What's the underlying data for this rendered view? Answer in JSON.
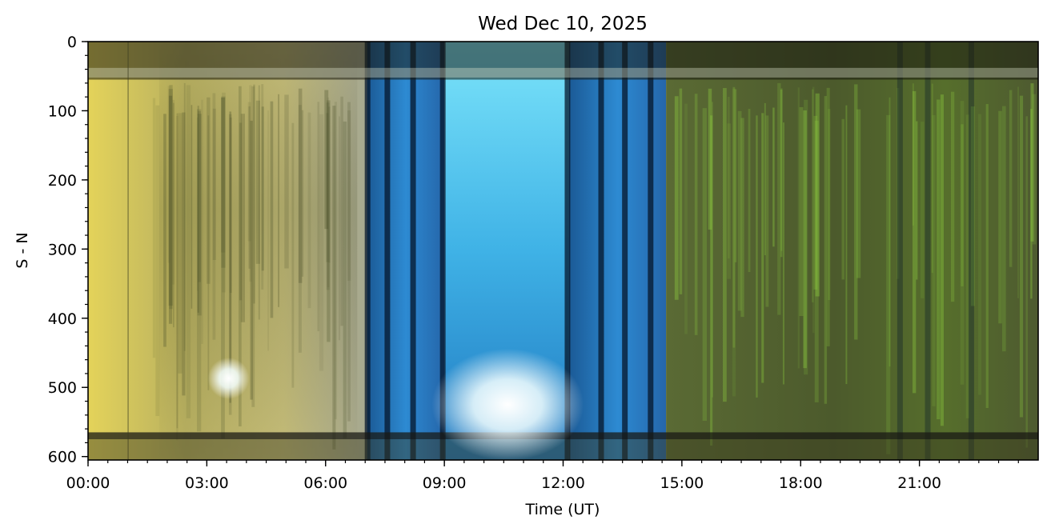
{
  "chart_data": {
    "type": "heatmap",
    "title": "Wed Dec 10, 2025",
    "xlabel": "Time (UT)",
    "ylabel": "S - N",
    "xlim": [
      0,
      24
    ],
    "ylim": [
      605,
      0
    ],
    "x_ticks": [
      {
        "value": 0,
        "label": "00:00"
      },
      {
        "value": 3,
        "label": "03:00"
      },
      {
        "value": 6,
        "label": "06:00"
      },
      {
        "value": 9,
        "label": "09:00"
      },
      {
        "value": 12,
        "label": "12:00"
      },
      {
        "value": 15,
        "label": "15:00"
      },
      {
        "value": 18,
        "label": "18:00"
      },
      {
        "value": 21,
        "label": "21:00"
      }
    ],
    "x_minor_step": 0.5,
    "y_ticks": [
      {
        "value": 0,
        "label": "0"
      },
      {
        "value": 100,
        "label": "100"
      },
      {
        "value": 200,
        "label": "200"
      },
      {
        "value": 300,
        "label": "300"
      },
      {
        "value": 400,
        "label": "400"
      },
      {
        "value": 500,
        "label": "500"
      },
      {
        "value": 600,
        "label": "600"
      }
    ],
    "y_minor_step": 20,
    "grid": false,
    "segments": [
      {
        "start": 0.0,
        "end": 7.05,
        "color": "#d6c85a"
      },
      {
        "start": 7.05,
        "end": 9.0,
        "color": "#1e5f9a"
      },
      {
        "start": 9.0,
        "end": 12.15,
        "color": "#4cc6ec"
      },
      {
        "start": 12.15,
        "end": 14.6,
        "color": "#2a7fc4"
      },
      {
        "start": 14.6,
        "end": 24.0,
        "color": "#4a5a2a"
      }
    ],
    "dark_bands_hours": [
      7.05,
      7.55,
      8.2,
      8.95,
      12.1,
      12.95,
      13.55,
      14.2,
      20.5,
      21.2,
      22.3
    ],
    "bright_spots": [
      {
        "time": 3.55,
        "sn": 487,
        "color": "#ffffff"
      },
      {
        "time": 10.6,
        "sn": 525,
        "color": "#ffffff"
      }
    ]
  }
}
